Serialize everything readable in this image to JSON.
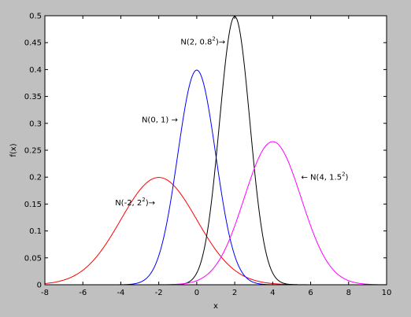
{
  "chart_data": {
    "type": "line",
    "title": "",
    "xlabel": "x",
    "ylabel": "f(x)",
    "xlim": [
      -8,
      10
    ],
    "ylim": [
      0,
      0.5
    ],
    "grid": false,
    "x_ticks": [
      -8,
      -6,
      -4,
      -2,
      0,
      2,
      4,
      6,
      8,
      10
    ],
    "y_ticks": [
      0,
      0.05,
      0.1,
      0.15,
      0.2,
      0.25,
      0.3,
      0.35,
      0.4,
      0.45,
      0.5
    ],
    "series": [
      {
        "mean": -2,
        "sd": 2,
        "color": "#ff0000",
        "annotation": {
          "base": "N(-2, 2",
          "exp": "2",
          "tail": ")→",
          "at": [
            -4.3,
            0.148
          ]
        }
      },
      {
        "mean": 0,
        "sd": 1,
        "color": "#0000ff",
        "annotation": {
          "base": "N(0, 1) →",
          "exp": "",
          "tail": "",
          "at": [
            -2.9,
            0.302
          ]
        }
      },
      {
        "mean": 2,
        "sd": 0.8,
        "color": "#000000",
        "annotation": {
          "base": "N(2, 0.8",
          "exp": "2",
          "tail": ")→",
          "at": [
            -0.85,
            0.447
          ]
        }
      },
      {
        "mean": 4,
        "sd": 1.5,
        "color": "#ff00ff",
        "annotation": {
          "base": "← N(4, 1.5",
          "exp": "2",
          "tail": ")",
          "at": [
            5.5,
            0.195
          ]
        }
      }
    ]
  }
}
